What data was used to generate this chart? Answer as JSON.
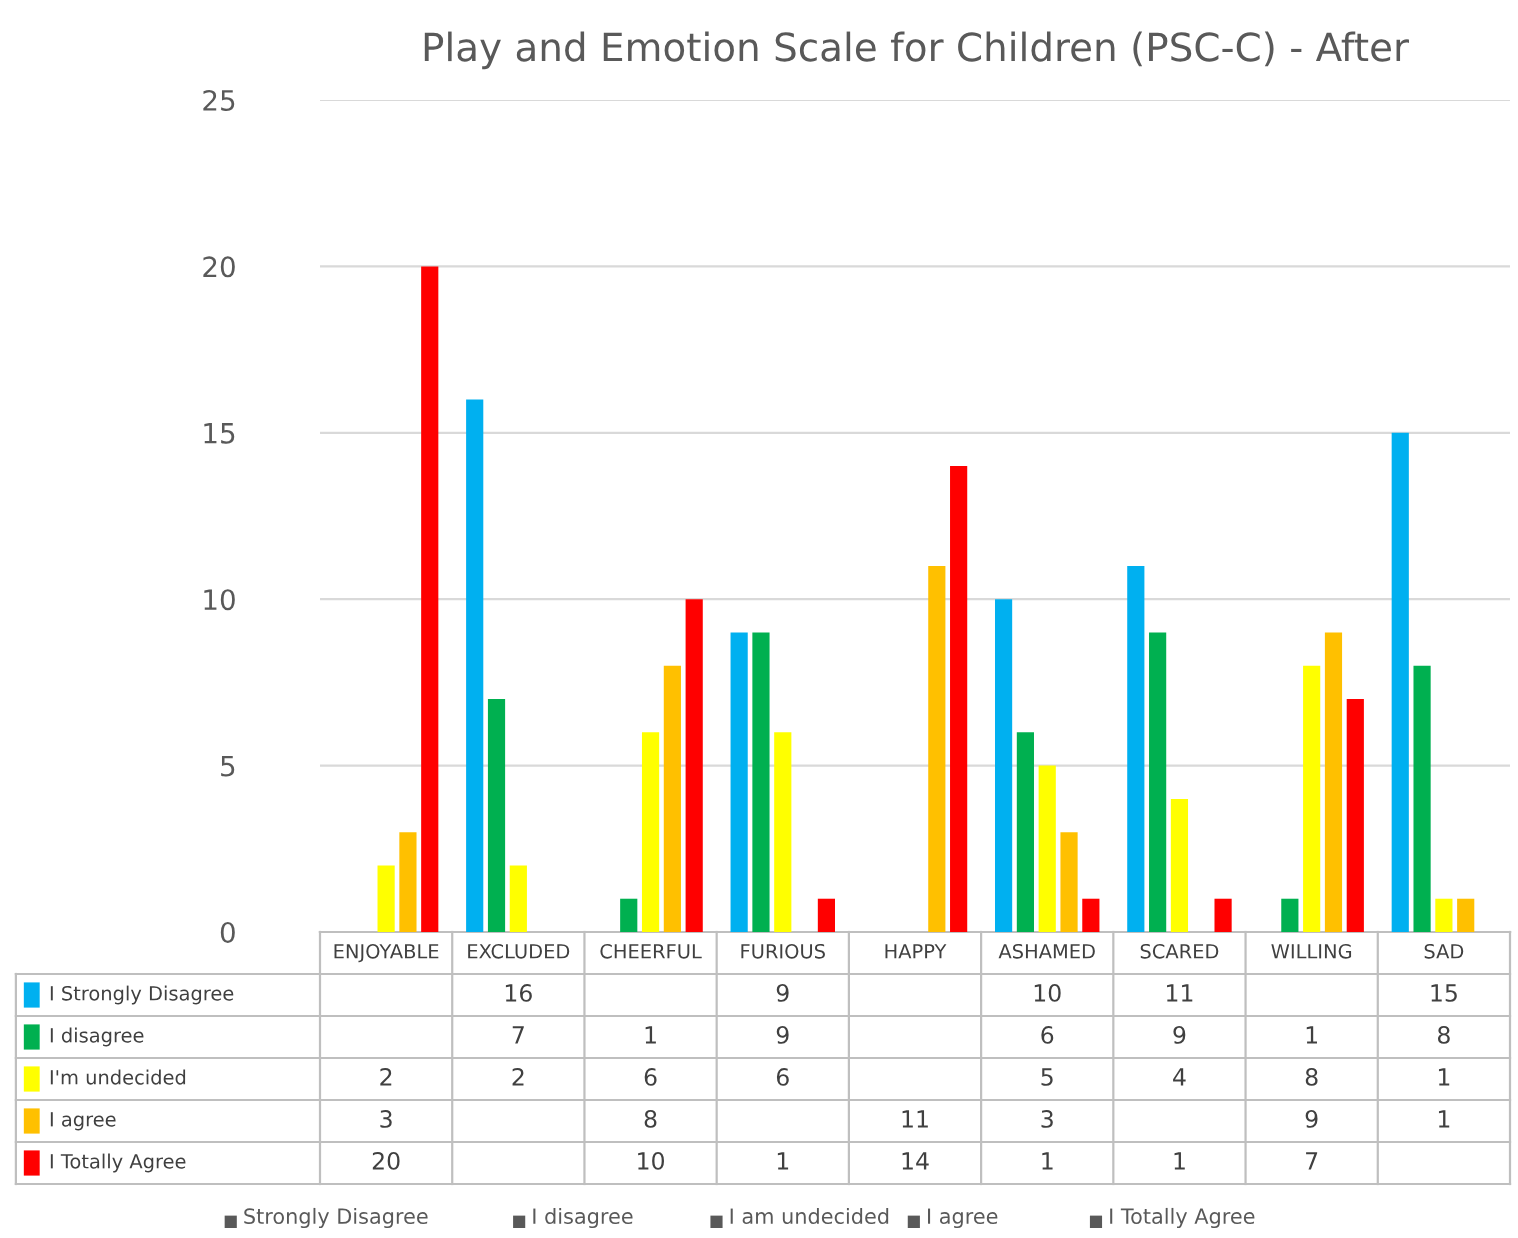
{
  "chart_data": {
    "type": "bar",
    "title": "Play and Emotion Scale for Children (PSC-C) - After",
    "categories": [
      "ENJOYABLE",
      "EXCLUDED",
      "CHEERFUL",
      "FURIOUS",
      "HAPPY",
      "ASHAMED",
      "SCARED",
      "WILLING",
      "SAD"
    ],
    "series": [
      {
        "name": "I Strongly Disagree",
        "color": "#00b0f0",
        "values": [
          null,
          16,
          null,
          9,
          null,
          10,
          11,
          null,
          15
        ]
      },
      {
        "name": "I disagree",
        "color": "#00b050",
        "values": [
          null,
          7,
          1,
          9,
          null,
          6,
          9,
          1,
          8
        ]
      },
      {
        "name": "I'm undecided",
        "color": "#ffff00",
        "values": [
          2,
          2,
          6,
          6,
          null,
          5,
          4,
          8,
          1
        ]
      },
      {
        "name": "I agree",
        "color": "#ffc000",
        "values": [
          3,
          null,
          8,
          null,
          11,
          3,
          null,
          9,
          1
        ]
      },
      {
        "name": "I Totally Agree",
        "color": "#ff0000",
        "values": [
          20,
          null,
          10,
          1,
          14,
          1,
          1,
          7,
          null
        ]
      }
    ],
    "legend": "bottom left",
    "ylim": [
      0,
      25
    ],
    "yticks": [
      0,
      5,
      10,
      15,
      20,
      25
    ],
    "grid": "y",
    "data_labels": true,
    "annotations": [
      "Strongly Disagree",
      "I disagree",
      "I am undecided",
      "I agree",
      "I Totally Agree"
    ]
  }
}
